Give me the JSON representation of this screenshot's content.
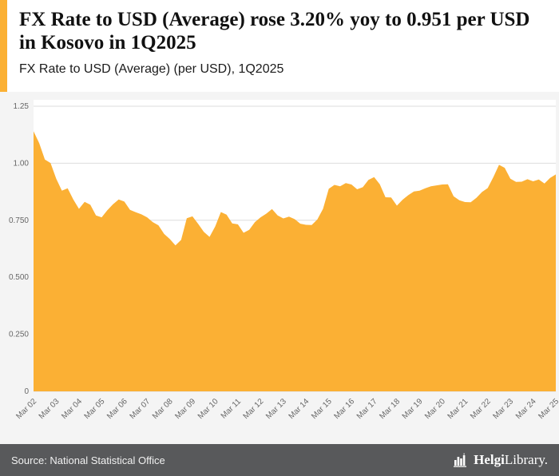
{
  "header": {
    "title": "FX Rate to USD (Average) rose 3.20% yoy to 0.951 per USD in Kosovo in 1Q2025",
    "subtitle": "FX Rate to USD (Average) (per USD), 1Q2025"
  },
  "footer": {
    "source": "Source: National Statistical Office",
    "brand_bold": "Helgi",
    "brand_rest": "Library."
  },
  "colors": {
    "accent": "#FBB034",
    "chart_bg": "#F4F4F4",
    "plot_bg": "#FFFFFF",
    "grid": "#DDDDDD",
    "tick_text": "#666666",
    "footer_bg": "#58595B",
    "title_text": "#111111"
  },
  "chart_data": {
    "type": "area",
    "title": "FX Rate to USD (Average) (per USD), 1Q2025",
    "frequency": "quarterly",
    "ylim": [
      0,
      1.25
    ],
    "grid": true,
    "legend": "none",
    "fill_color": "#FBB034",
    "y_ticks": {
      "values": [
        0,
        0.25,
        0.5,
        0.75,
        1.0,
        1.25
      ],
      "labels": [
        "0",
        "0.250",
        "0.500",
        "0.750",
        "1.00",
        "1.25"
      ]
    },
    "x_tick_labels": [
      "Mar 02",
      "Mar 03",
      "Mar 04",
      "Mar 05",
      "Mar 06",
      "Mar 07",
      "Mar 08",
      "Mar 09",
      "Mar 10",
      "Mar 11",
      "Mar 12",
      "Mar 13",
      "Mar 14",
      "Mar 15",
      "Mar 16",
      "Mar 17",
      "Mar 18",
      "Mar 19",
      "Mar 20",
      "Mar 21",
      "Mar 22",
      "Mar 23",
      "Mar 24",
      "Mar 25"
    ],
    "label_every_n_points": 4,
    "series": [
      {
        "name": "FX Rate to USD (Average), per USD",
        "values": [
          1.14,
          1.088,
          1.016,
          1.001,
          0.932,
          0.88,
          0.89,
          0.841,
          0.8,
          0.831,
          0.818,
          0.771,
          0.763,
          0.794,
          0.82,
          0.841,
          0.832,
          0.796,
          0.785,
          0.776,
          0.763,
          0.742,
          0.728,
          0.69,
          0.668,
          0.64,
          0.664,
          0.759,
          0.767,
          0.734,
          0.699,
          0.677,
          0.723,
          0.786,
          0.775,
          0.736,
          0.732,
          0.695,
          0.708,
          0.742,
          0.763,
          0.779,
          0.799,
          0.771,
          0.758,
          0.766,
          0.755,
          0.735,
          0.73,
          0.729,
          0.754,
          0.8,
          0.888,
          0.905,
          0.899,
          0.913,
          0.907,
          0.886,
          0.895,
          0.927,
          0.939,
          0.908,
          0.851,
          0.85,
          0.814,
          0.84,
          0.86,
          0.876,
          0.88,
          0.89,
          0.899,
          0.903,
          0.907,
          0.908,
          0.855,
          0.838,
          0.83,
          0.829,
          0.848,
          0.874,
          0.891,
          0.939,
          0.993,
          0.98,
          0.932,
          0.918,
          0.919,
          0.93,
          0.921,
          0.929,
          0.911,
          0.936,
          0.951
        ]
      }
    ],
    "last_value": 0.951,
    "yoy_change_pct": 3.2
  }
}
